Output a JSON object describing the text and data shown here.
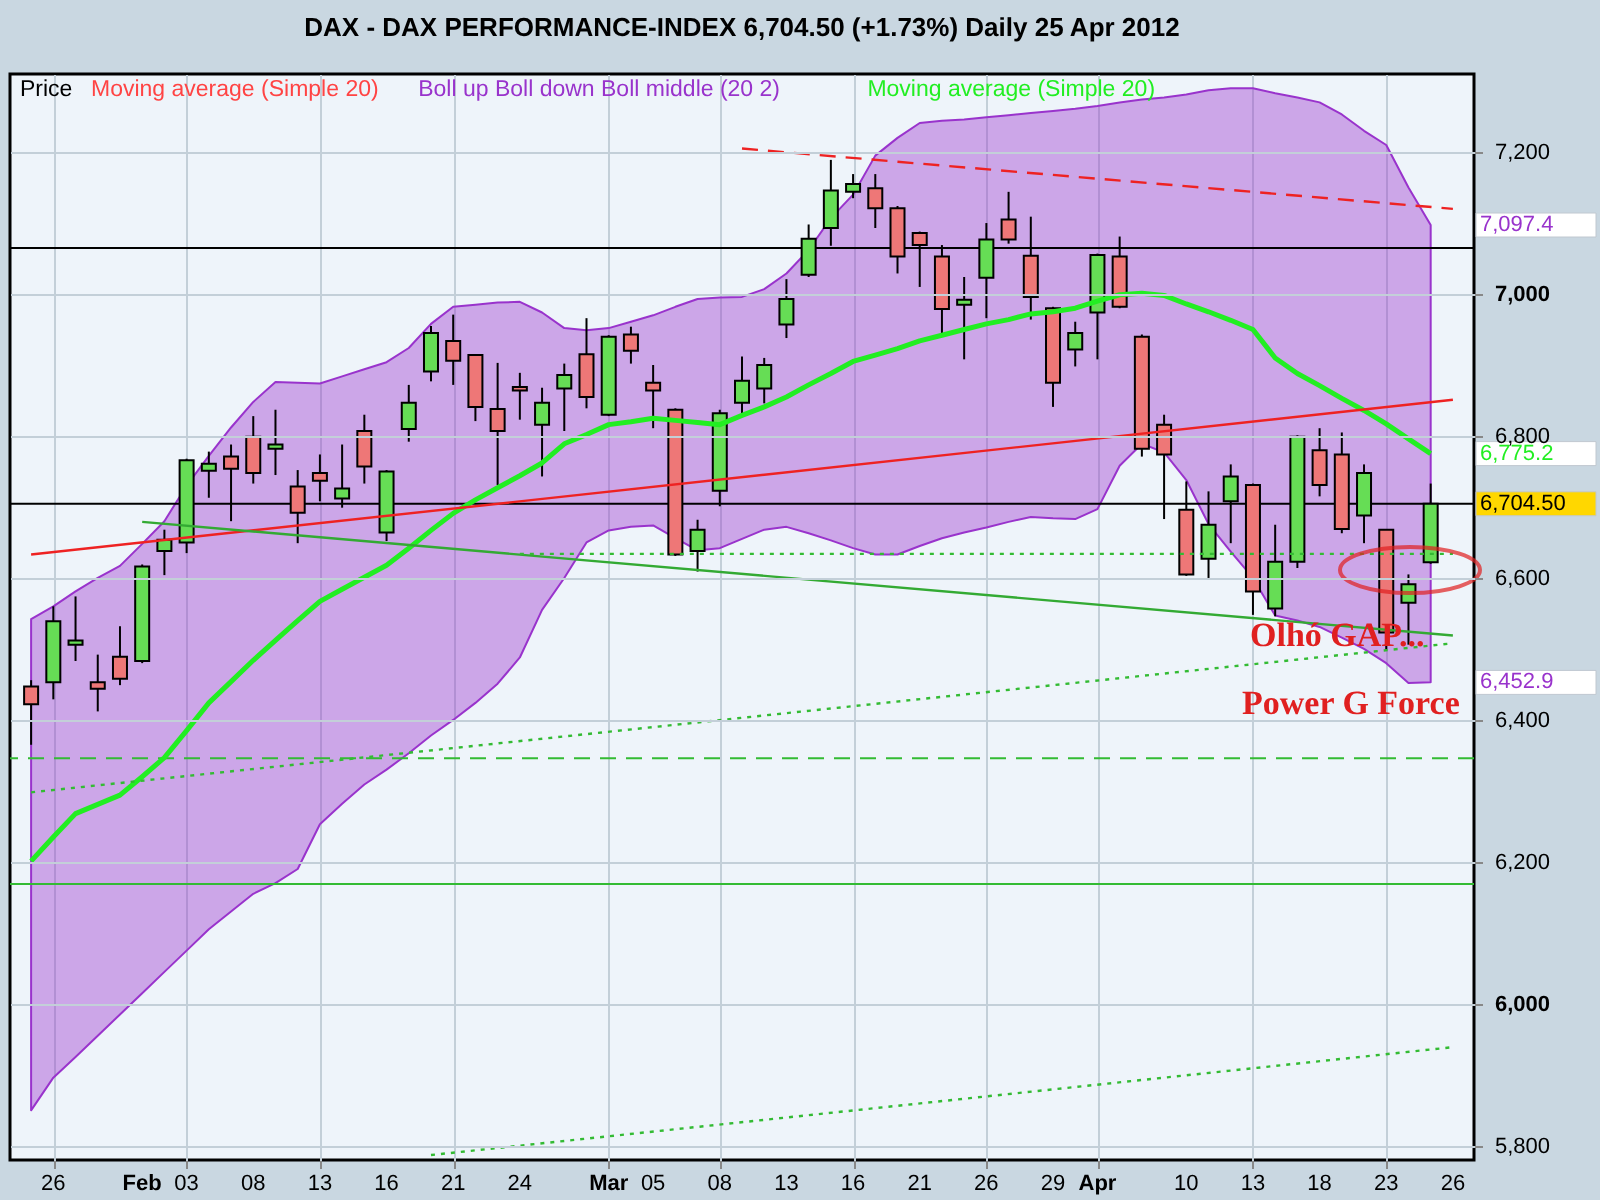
{
  "chart_data": {
    "type": "candlestick",
    "title": "DAX - DAX PERFORMANCE-INDEX   6,704.50 (+1.73%)   Daily  25 Apr 2012",
    "categories": [
      null,
      "26",
      null,
      null,
      null,
      "Feb",
      null,
      "03",
      null,
      null,
      "08",
      null,
      null,
      "13",
      null,
      null,
      "16",
      null,
      null,
      "21",
      null,
      null,
      "24",
      null,
      null,
      null,
      "Mar",
      null,
      "05",
      null,
      null,
      "08",
      null,
      null,
      "13",
      null,
      null,
      "16",
      null,
      null,
      "21",
      null,
      null,
      "26",
      null,
      null,
      "29",
      null,
      "Apr",
      null,
      null,
      null,
      "10",
      null,
      null,
      "13",
      null,
      null,
      "18",
      null,
      null,
      "23",
      null,
      null,
      "26"
    ],
    "ylim": [
      5780,
      7310
    ],
    "yticks": [
      {
        "value": 5800,
        "label": "5,800"
      },
      {
        "value": 6000,
        "label": "6,000"
      },
      {
        "value": 6200,
        "label": "6,200"
      },
      {
        "value": 6400,
        "label": "6,400"
      },
      {
        "value": 6600,
        "label": "6,600"
      },
      {
        "value": 6800,
        "label": "6,800"
      },
      {
        "value": 7000,
        "label": "7,000"
      },
      {
        "value": 7200,
        "label": "7,200"
      }
    ],
    "grid": true,
    "legend": "top left",
    "series": [
      {
        "name": "Price",
        "color": "#000000",
        "ohlc": [
          [
            6447,
            6456,
            6365,
            6422
          ],
          [
            6453,
            6560,
            6429,
            6539
          ],
          [
            6506,
            6574,
            6483,
            6512
          ],
          [
            6453,
            6492,
            6412,
            6444
          ],
          [
            6489,
            6532,
            6449,
            6458
          ],
          [
            6483,
            6619,
            6480,
            6616
          ],
          [
            6638,
            6668,
            6604,
            6654
          ],
          [
            6650,
            6768,
            6635,
            6766
          ],
          [
            6751,
            6778,
            6713,
            6761
          ],
          [
            6771,
            6788,
            6680,
            6754
          ],
          [
            6799,
            6828,
            6733,
            6748
          ],
          [
            6782,
            6837,
            6745,
            6788
          ],
          [
            6729,
            6752,
            6649,
            6692
          ],
          [
            6748,
            6774,
            6708,
            6737
          ],
          [
            6712,
            6788,
            6699,
            6726
          ],
          [
            6807,
            6830,
            6733,
            6757
          ],
          [
            6664,
            6752,
            6652,
            6750
          ],
          [
            6810,
            6872,
            6792,
            6847
          ],
          [
            6891,
            6955,
            6877,
            6945
          ],
          [
            6934,
            6971,
            6872,
            6906
          ],
          [
            6914,
            6915,
            6821,
            6841
          ],
          [
            6838,
            6903,
            6731,
            6807
          ],
          [
            6869,
            6889,
            6823,
            6864
          ],
          [
            6816,
            6868,
            6743,
            6847
          ],
          [
            6867,
            6902,
            6807,
            6886
          ],
          [
            6915,
            6966,
            6839,
            6855
          ],
          [
            6830,
            6942,
            6828,
            6940
          ],
          [
            6943,
            6954,
            6902,
            6920
          ],
          [
            6875,
            6900,
            6811,
            6864
          ],
          [
            6837,
            6839,
            6631,
            6633
          ],
          [
            6638,
            6682,
            6609,
            6668
          ],
          [
            6723,
            6837,
            6701,
            6832
          ],
          [
            6847,
            6912,
            6830,
            6878
          ],
          [
            6867,
            6910,
            6846,
            6900
          ],
          [
            6957,
            7021,
            6938,
            6993
          ],
          [
            7027,
            7098,
            7024,
            7078
          ],
          [
            7093,
            7189,
            7068,
            7146
          ],
          [
            7144,
            7169,
            7135,
            7155
          ],
          [
            7149,
            7169,
            7093,
            7121
          ],
          [
            7121,
            7124,
            7029,
            7053
          ],
          [
            7086,
            7088,
            7010,
            7069
          ],
          [
            7053,
            7069,
            6940,
            6979
          ],
          [
            6985,
            7024,
            6908,
            6992
          ],
          [
            7023,
            7100,
            6966,
            7077
          ],
          [
            7105,
            7144,
            7071,
            7077
          ],
          [
            7054,
            7109,
            6964,
            6996
          ],
          [
            6980,
            6982,
            6841,
            6875
          ],
          [
            6922,
            6961,
            6898,
            6945
          ],
          [
            6974,
            7057,
            6908,
            7055
          ],
          [
            7053,
            7081,
            6980,
            6982
          ],
          [
            6940,
            6943,
            6771,
            6782
          ],
          [
            6816,
            6830,
            6683,
            6774
          ],
          [
            6696,
            6736,
            6603,
            6605
          ],
          [
            6627,
            6722,
            6600,
            6675
          ],
          [
            6708,
            6760,
            6649,
            6743
          ],
          [
            6731,
            6733,
            6548,
            6581
          ],
          [
            6557,
            6675,
            6546,
            6623
          ],
          [
            6623,
            6801,
            6614,
            6799
          ],
          [
            6780,
            6811,
            6715,
            6731
          ],
          [
            6774,
            6805,
            6663,
            6669
          ],
          [
            6688,
            6760,
            6649,
            6748
          ],
          [
            6668,
            6669,
            6499,
            6523
          ],
          [
            6565,
            6605,
            6506,
            6591
          ],
          [
            6622,
            6733,
            6620,
            6704.5
          ],
          null
        ],
        "colors": [
          "#ee7777",
          "#66dd55",
          "#66dd55",
          "#ee7777",
          "#ee7777",
          "#66dd55",
          "#66dd55",
          "#66dd55",
          "#66dd55",
          "#ee7777",
          "#ee7777",
          "#66dd55",
          "#ee7777",
          "#ee7777",
          "#66dd55",
          "#ee7777",
          "#66dd55",
          "#66dd55",
          "#66dd55",
          "#ee7777",
          "#ee7777",
          "#ee7777",
          "#ee7777",
          "#66dd55",
          "#66dd55",
          "#ee7777",
          "#66dd55",
          "#ee7777",
          "#ee7777",
          "#ee7777",
          "#66dd55",
          "#66dd55",
          "#66dd55",
          "#66dd55",
          "#66dd55",
          "#66dd55",
          "#66dd55",
          "#66dd55",
          "#ee7777",
          "#ee7777",
          "#ee7777",
          "#ee7777",
          "#66dd55",
          "#66dd55",
          "#ee7777",
          "#ee7777",
          "#ee7777",
          "#66dd55",
          "#66dd55",
          "#ee7777",
          "#ee7777",
          "#ee7777",
          "#ee7777",
          "#66dd55",
          "#66dd55",
          "#ee7777",
          "#66dd55",
          "#66dd55",
          "#ee7777",
          "#ee7777",
          "#66dd55",
          "#ee7777",
          "#66dd55",
          "#66dd55",
          null
        ],
        "value_labels": [
          null,
          null,
          null,
          null,
          null,
          null,
          null,
          null,
          null,
          null,
          null,
          null,
          null,
          null,
          null,
          null,
          null,
          null,
          null,
          null,
          null,
          null,
          null,
          null,
          null,
          null,
          null,
          null,
          null,
          null,
          null,
          null,
          null,
          null,
          null,
          null,
          null,
          null,
          null,
          null,
          null,
          null,
          null,
          null,
          null,
          null,
          null,
          null,
          null,
          null,
          null,
          null,
          null,
          null,
          null,
          null,
          null,
          null,
          null,
          null,
          null,
          null,
          null,
          "6,704.50",
          null
        ]
      },
      {
        "name": "Moving average (Simple 20)",
        "type": "line",
        "color": "#ff4444",
        "values": [
          null,
          null,
          null,
          null,
          null,
          null,
          null,
          null,
          null,
          null,
          null,
          null,
          null,
          null,
          null,
          null,
          null,
          null,
          null,
          null,
          null,
          null,
          null,
          null,
          null,
          null,
          null,
          null,
          null,
          null,
          null,
          null,
          null,
          null,
          null,
          null,
          null,
          null,
          null,
          null,
          null,
          null,
          null,
          null,
          null,
          null,
          null,
          null,
          null,
          null,
          null,
          null,
          null,
          null,
          null,
          null,
          null,
          null,
          null,
          null,
          null,
          null,
          null,
          null,
          null
        ]
      },
      {
        "name": "Boll up Boll down Boll middle (20 2)",
        "type": "line",
        "color": "#9933cc",
        "values": [
          null,
          null,
          null,
          null,
          null,
          null,
          null,
          null,
          null,
          null,
          null,
          null,
          null,
          null,
          null,
          null,
          null,
          null,
          null,
          null,
          null,
          null,
          null,
          null,
          null,
          null,
          null,
          null,
          null,
          null,
          null,
          null,
          null,
          null,
          null,
          null,
          null,
          null,
          null,
          null,
          null,
          null,
          null,
          null,
          null,
          null,
          null,
          null,
          null,
          null,
          null,
          null,
          null,
          null,
          null,
          null,
          null,
          null,
          null,
          null,
          null,
          null,
          null,
          null,
          null
        ],
        "lower": [
          5850,
          5896,
          5925,
          5955,
          5985,
          6015,
          6045,
          6075,
          6105,
          6130,
          6155,
          6170,
          6190,
          6253,
          6282,
          6309,
          6330,
          6353,
          6378,
          6400,
          6424,
          6451,
          6488,
          6555,
          6600,
          6650,
          6667,
          6672,
          6674,
          6656,
          6639,
          6642,
          6655,
          6668,
          6672,
          6663,
          6653,
          6642,
          6633,
          6633,
          6645,
          6656,
          6664,
          6671,
          6679,
          6686,
          6684,
          6683,
          6697,
          6758,
          6789,
          6777,
          6738,
          6676,
          6637,
          6600,
          6547,
          6540,
          6531,
          6516,
          6500,
          6480,
          6452,
          6452.9,
          null
        ],
        "upper": [
          6542,
          6560,
          6581,
          6600,
          6617,
          6648,
          6680,
          6730,
          6772,
          6812,
          6848,
          6876,
          6875,
          6874,
          6884,
          6894,
          6904,
          6924,
          6958,
          6982,
          6985,
          6988,
          6989,
          6974,
          6952,
          6949,
          6952,
          6961,
          6970,
          6982,
          6993,
          6995,
          6996,
          7007,
          7029,
          7062,
          7107,
          7140,
          7195,
          7220,
          7241,
          7244,
          7246,
          7249,
          7252,
          7255,
          7258,
          7261,
          7265,
          7270,
          7274,
          7277,
          7281,
          7287,
          7290,
          7290,
          7283,
          7277,
          7270,
          7253,
          7230,
          7210,
          7150,
          7097.4,
          null
        ]
      },
      {
        "name": "Moving average (Simple 20)",
        "type": "line",
        "color": "#22ee22",
        "values": [
          6201,
          6235,
          6268,
          6281,
          6294,
          6320,
          6347,
          6385,
          6424,
          6454,
          6484,
          6512,
          6540,
          6567,
          6584,
          6601,
          6618,
          6642,
          6667,
          6691,
          6710,
          6727,
          6744,
          6762,
          6789,
          6802,
          6816,
          6820,
          6825,
          6822,
          6819,
          6816,
          6829,
          6841,
          6855,
          6872,
          6888,
          6905,
          6914,
          6923,
          6934,
          6942,
          6950,
          6958,
          6964,
          6972,
          6975,
          6980,
          6990,
          6999,
          7001,
          6998,
          6986,
          6975,
          6963,
          6950,
          6910,
          6888,
          6871,
          6853,
          6836,
          6817,
          6796,
          6775.2,
          null
        ]
      },
      {
        "type": "line",
        "color": "#ee2222",
        "line_style": "solid",
        "values": [
          6633,
          null,
          null,
          null,
          null,
          null,
          null,
          null,
          null,
          null,
          null,
          null,
          null,
          null,
          null,
          null,
          null,
          null,
          null,
          null,
          null,
          null,
          null,
          null,
          null,
          null,
          null,
          null,
          null,
          null,
          null,
          null,
          null,
          null,
          null,
          null,
          null,
          null,
          null,
          null,
          null,
          null,
          null,
          null,
          null,
          null,
          null,
          null,
          null,
          null,
          null,
          null,
          null,
          null,
          null,
          null,
          null,
          null,
          null,
          null,
          null,
          null,
          null,
          null,
          6851
        ]
      },
      {
        "type": "line",
        "color": "#ee2222",
        "line_style": "dashed",
        "values": [
          null,
          null,
          null,
          null,
          null,
          null,
          null,
          null,
          null,
          null,
          null,
          null,
          null,
          null,
          null,
          null,
          null,
          null,
          null,
          null,
          null,
          null,
          null,
          null,
          null,
          null,
          null,
          null,
          null,
          null,
          null,
          null,
          7205,
          null,
          null,
          null,
          null,
          null,
          null,
          null,
          null,
          null,
          null,
          null,
          null,
          null,
          null,
          null,
          null,
          null,
          null,
          null,
          null,
          null,
          null,
          null,
          null,
          null,
          null,
          null,
          null,
          null,
          null,
          null,
          7120
        ]
      },
      {
        "type": "line",
        "color": "#33aa33",
        "line_style": "solid",
        "values": [
          null,
          null,
          null,
          null,
          null,
          6679,
          null,
          null,
          null,
          null,
          null,
          null,
          null,
          null,
          null,
          null,
          null,
          null,
          null,
          null,
          null,
          null,
          null,
          null,
          null,
          null,
          null,
          null,
          null,
          null,
          null,
          null,
          null,
          null,
          null,
          null,
          null,
          null,
          null,
          null,
          null,
          null,
          null,
          null,
          null,
          null,
          null,
          null,
          null,
          null,
          null,
          null,
          null,
          null,
          null,
          null,
          null,
          null,
          null,
          null,
          null,
          null,
          null,
          null,
          6519
        ]
      },
      {
        "type": "line",
        "color": "#33bb33",
        "line_style": "dotted",
        "values": [
          6298,
          null,
          null,
          null,
          null,
          null,
          null,
          null,
          null,
          null,
          null,
          null,
          null,
          null,
          null,
          null,
          null,
          null,
          null,
          null,
          null,
          null,
          null,
          null,
          null,
          null,
          null,
          null,
          null,
          null,
          null,
          null,
          null,
          null,
          null,
          null,
          null,
          null,
          null,
          null,
          null,
          null,
          null,
          null,
          null,
          null,
          null,
          null,
          null,
          null,
          null,
          null,
          null,
          null,
          null,
          null,
          null,
          null,
          null,
          null,
          null,
          null,
          null,
          null,
          6508
        ]
      },
      {
        "type": "line",
        "color": "#33bb33",
        "line_style": "dotted",
        "values": [
          null,
          null,
          null,
          null,
          null,
          null,
          null,
          null,
          null,
          null,
          null,
          null,
          null,
          null,
          null,
          null,
          null,
          null,
          5787,
          null,
          null,
          null,
          null,
          null,
          null,
          null,
          null,
          null,
          null,
          null,
          null,
          null,
          null,
          null,
          null,
          null,
          null,
          null,
          null,
          null,
          null,
          null,
          null,
          null,
          null,
          null,
          null,
          null,
          null,
          null,
          null,
          null,
          null,
          null,
          null,
          null,
          null,
          null,
          null,
          null,
          null,
          null,
          null,
          null,
          5939
        ]
      },
      {
        "type": "line",
        "color": "#33bb33",
        "line_style": "dotted",
        "values": [
          null,
          null,
          null,
          null,
          null,
          null,
          null,
          null,
          null,
          null,
          null,
          null,
          null,
          null,
          null,
          null,
          null,
          null,
          null,
          null,
          null,
          null,
          6634,
          null,
          null,
          null,
          null,
          null,
          null,
          null,
          null,
          null,
          null,
          null,
          null,
          null,
          null,
          null,
          null,
          null,
          null,
          null,
          null,
          null,
          null,
          null,
          null,
          null,
          null,
          null,
          null,
          null,
          null,
          null,
          null,
          null,
          null,
          null,
          null,
          null,
          null,
          null,
          null,
          null,
          6634
        ]
      }
    ],
    "ref_lines": [
      {
        "axis": "y",
        "value": 7065,
        "color": "#000000"
      },
      {
        "axis": "y",
        "value": 6704.5,
        "color": "#000000"
      },
      {
        "axis": "y",
        "value": 6346,
        "color": "#33bb33",
        "line_style": "dashed"
      },
      {
        "axis": "y",
        "value": 6169,
        "color": "#33bb33"
      }
    ],
    "annotations": [
      "Olhó GAP...",
      "Power G Force",
      "7,097.4",
      "6,452.9",
      "6,775.2"
    ]
  }
}
